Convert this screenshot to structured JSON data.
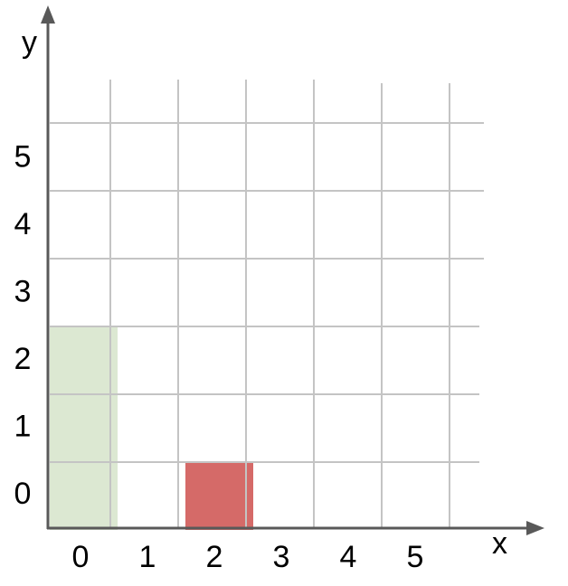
{
  "axes": {
    "x_label": "x",
    "y_label": "y",
    "x_ticks": [
      "0",
      "1",
      "2",
      "3",
      "4",
      "5"
    ],
    "y_ticks": [
      "0",
      "1",
      "2",
      "3",
      "4",
      "5"
    ]
  },
  "cells": [
    {
      "name": "green-bar",
      "x": 0,
      "y": 0,
      "width": 1,
      "height": 3,
      "color": "#dce8d2"
    },
    {
      "name": "red-square",
      "x": 2,
      "y": 0,
      "width": 1,
      "height": 1,
      "color": "#d56a68"
    }
  ],
  "colors": {
    "grid": "#c4c4c4",
    "axis": "#595959"
  }
}
